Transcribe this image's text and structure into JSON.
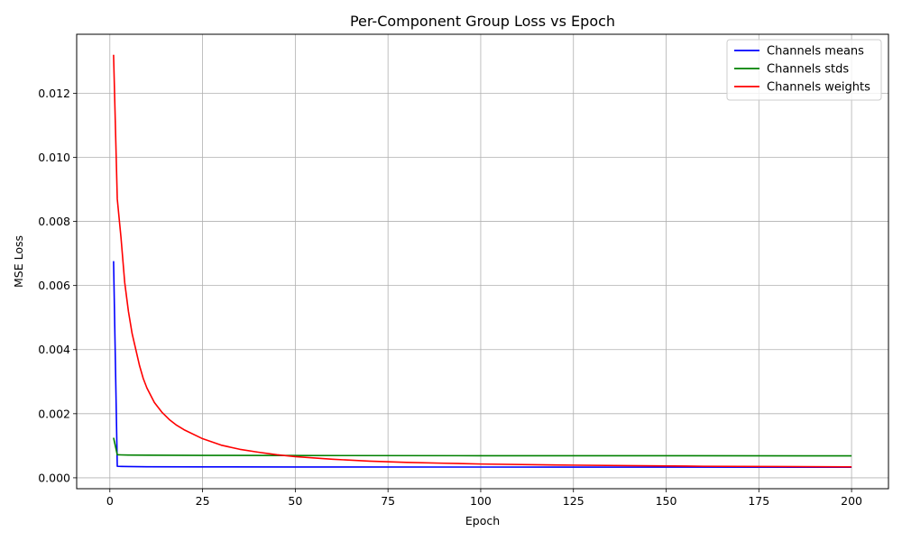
{
  "chart_data": {
    "type": "line",
    "title": "Per-Component Group Loss vs Epoch",
    "xlabel": "Epoch",
    "ylabel": "MSE Loss",
    "xlim": [
      -8.95,
      209.95
    ],
    "ylim": [
      -0.00034,
      0.01384
    ],
    "xticks": [
      0,
      25,
      50,
      75,
      100,
      125,
      150,
      175,
      200
    ],
    "xtick_labels": [
      "0",
      "25",
      "50",
      "75",
      "100",
      "125",
      "150",
      "175",
      "200"
    ],
    "yticks": [
      0,
      0.002,
      0.004,
      0.006,
      0.008,
      0.01,
      0.012
    ],
    "ytick_labels": [
      "0.000",
      "0.002",
      "0.004",
      "0.006",
      "0.008",
      "0.010",
      "0.012"
    ],
    "grid": true,
    "legend_position": "top-right",
    "series": [
      {
        "name": "Channels means",
        "color": "#0000ff",
        "x": [
          1,
          2,
          3,
          5,
          10,
          25,
          50,
          100,
          150,
          200
        ],
        "values": [
          0.00676,
          0.00036,
          0.000355,
          0.00035,
          0.000345,
          0.00034,
          0.000338,
          0.000335,
          0.000332,
          0.00033
        ]
      },
      {
        "name": "Channels stds",
        "color": "#008000",
        "x": [
          1,
          2,
          3,
          5,
          10,
          25,
          50,
          100,
          150,
          200
        ],
        "values": [
          0.00125,
          0.00072,
          0.000715,
          0.00071,
          0.000705,
          0.0007,
          0.000695,
          0.00069,
          0.000688,
          0.000685
        ]
      },
      {
        "name": "Channels weights",
        "color": "#ff0000",
        "x": [
          1,
          2,
          3,
          4,
          5,
          6,
          7,
          8,
          9,
          10,
          12,
          14,
          16,
          18,
          20,
          25,
          30,
          35,
          40,
          45,
          50,
          60,
          70,
          80,
          90,
          100,
          120,
          140,
          160,
          180,
          200
        ],
        "values": [
          0.0132,
          0.0087,
          0.0075,
          0.0061,
          0.0052,
          0.0045,
          0.004,
          0.0035,
          0.0031,
          0.0028,
          0.00235,
          0.00205,
          0.00182,
          0.00164,
          0.0015,
          0.00122,
          0.00102,
          0.00089,
          0.0008,
          0.00072,
          0.00066,
          0.00058,
          0.00052,
          0.00048,
          0.000455,
          0.00043,
          0.0004,
          0.00038,
          0.00036,
          0.00035,
          0.00034
        ]
      }
    ]
  }
}
